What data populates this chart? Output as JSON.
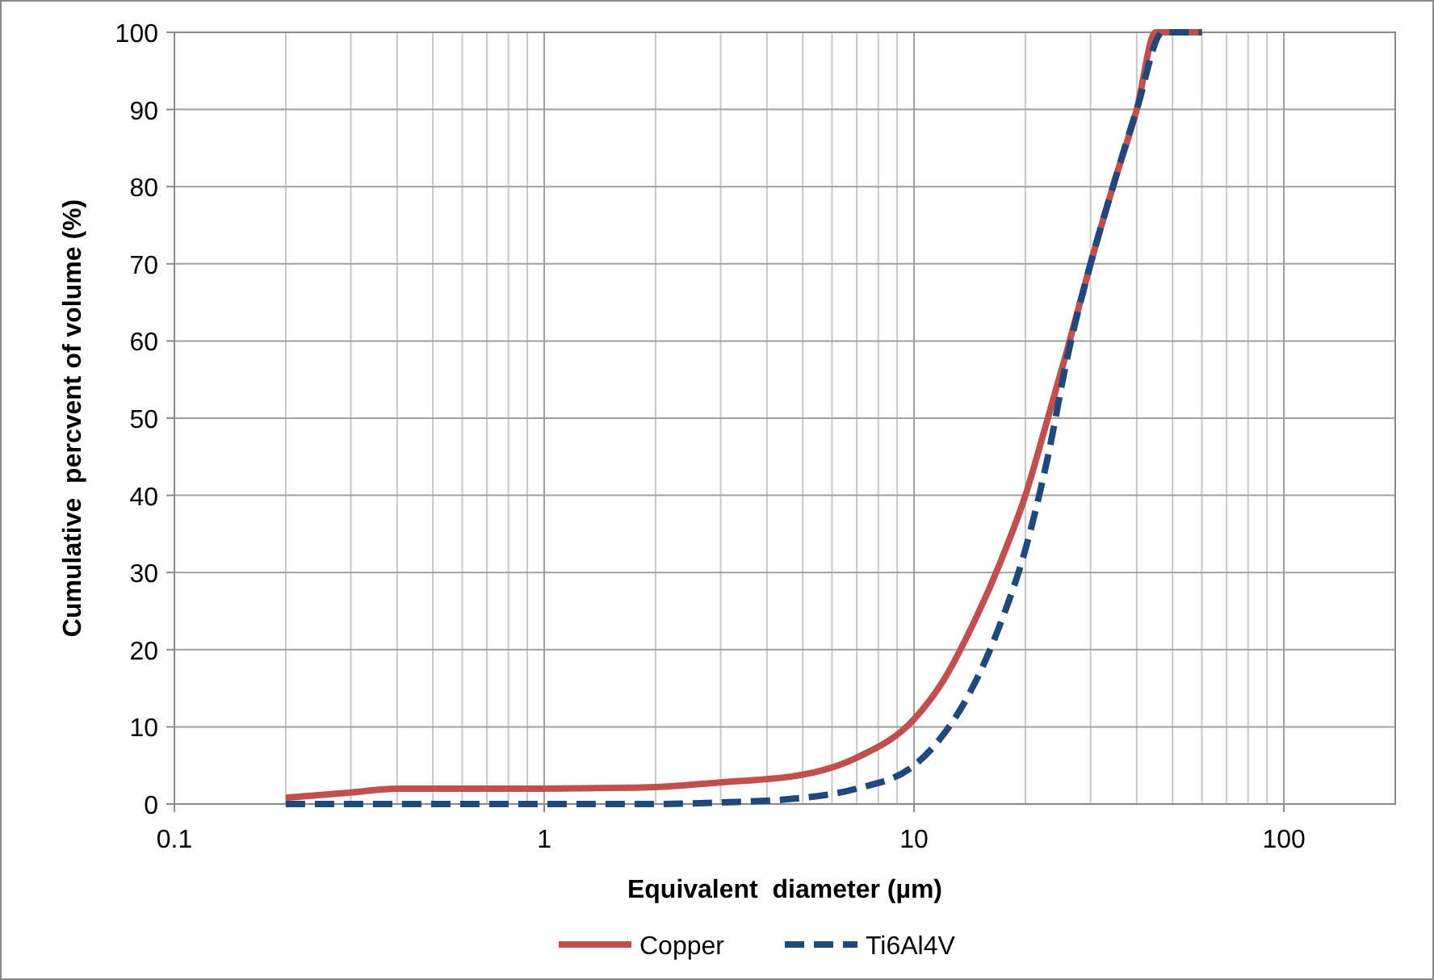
{
  "chart_data": {
    "type": "line",
    "xlabel": "Equivalent  diameter (µm)",
    "ylabel": "Cumulative  percvent of volume (%)",
    "log": "x",
    "xlim": [
      0.1,
      200
    ],
    "xticks": [
      0.1,
      1,
      10,
      100
    ],
    "ylim": [
      0,
      100
    ],
    "yticks": [
      0,
      10,
      20,
      30,
      40,
      50,
      60,
      70,
      80,
      90,
      100
    ],
    "grid": true,
    "legend": "bottom",
    "marker": "none",
    "series": [
      {
        "name": "Copper",
        "color": "#c0504d",
        "line_style": "solid",
        "x": [
          0.2,
          0.3,
          0.4,
          0.6,
          1,
          2,
          3,
          5,
          7,
          10,
          12,
          14,
          17,
          20,
          23,
          26,
          30,
          35,
          40,
          45,
          50,
          60
        ],
        "values": [
          0.8,
          1.5,
          2,
          2,
          2,
          2.2,
          2.8,
          3.8,
          6,
          11,
          16,
          22,
          31,
          40,
          50,
          59,
          70,
          81,
          90,
          100,
          100,
          100
        ]
      },
      {
        "name": "Ti6Al4V",
        "color": "#1f497d",
        "line_style": "dashed",
        "x": [
          0.2,
          0.5,
          1,
          2,
          3,
          5,
          7,
          10,
          12,
          14,
          17,
          20,
          23,
          26,
          30,
          35,
          40,
          47,
          50,
          60
        ],
        "values": [
          0,
          0,
          0,
          0,
          0.2,
          0.8,
          2,
          5,
          9,
          14,
          23,
          33,
          45,
          58,
          70,
          81,
          90,
          100,
          100,
          100
        ]
      }
    ]
  }
}
